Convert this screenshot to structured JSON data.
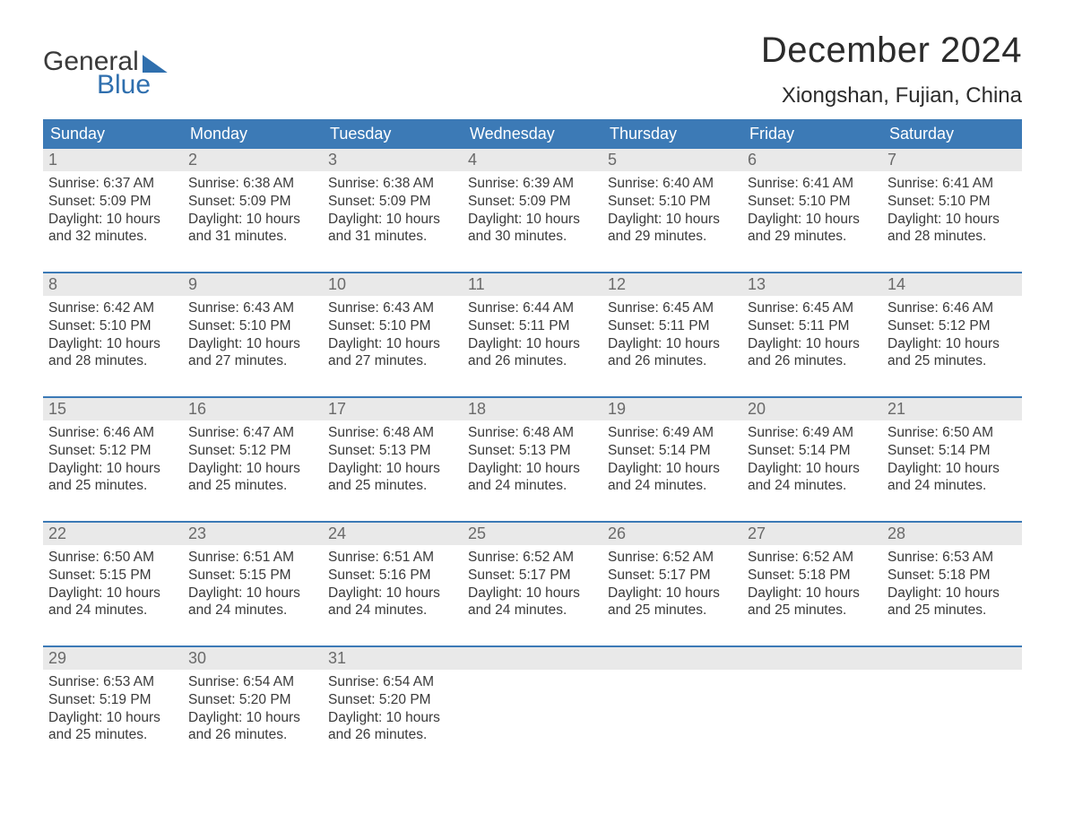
{
  "logo": {
    "top": "General",
    "bottom": "Blue"
  },
  "title": "December 2024",
  "location": "Xiongshan, Fujian, China",
  "colors": {
    "header_bg": "#3c7ab6",
    "header_text": "#ffffff",
    "daynum_bg": "#e9e9e9",
    "daynum_text": "#6a6a6a",
    "body_text": "#3a3a3a",
    "accent": "#2f6fae",
    "page_bg": "#ffffff"
  },
  "days_of_week": [
    "Sunday",
    "Monday",
    "Tuesday",
    "Wednesday",
    "Thursday",
    "Friday",
    "Saturday"
  ],
  "weeks": [
    [
      {
        "n": "1",
        "sr": "Sunrise: 6:37 AM",
        "ss": "Sunset: 5:09 PM",
        "d1": "Daylight: 10 hours",
        "d2": "and 32 minutes."
      },
      {
        "n": "2",
        "sr": "Sunrise: 6:38 AM",
        "ss": "Sunset: 5:09 PM",
        "d1": "Daylight: 10 hours",
        "d2": "and 31 minutes."
      },
      {
        "n": "3",
        "sr": "Sunrise: 6:38 AM",
        "ss": "Sunset: 5:09 PM",
        "d1": "Daylight: 10 hours",
        "d2": "and 31 minutes."
      },
      {
        "n": "4",
        "sr": "Sunrise: 6:39 AM",
        "ss": "Sunset: 5:09 PM",
        "d1": "Daylight: 10 hours",
        "d2": "and 30 minutes."
      },
      {
        "n": "5",
        "sr": "Sunrise: 6:40 AM",
        "ss": "Sunset: 5:10 PM",
        "d1": "Daylight: 10 hours",
        "d2": "and 29 minutes."
      },
      {
        "n": "6",
        "sr": "Sunrise: 6:41 AM",
        "ss": "Sunset: 5:10 PM",
        "d1": "Daylight: 10 hours",
        "d2": "and 29 minutes."
      },
      {
        "n": "7",
        "sr": "Sunrise: 6:41 AM",
        "ss": "Sunset: 5:10 PM",
        "d1": "Daylight: 10 hours",
        "d2": "and 28 minutes."
      }
    ],
    [
      {
        "n": "8",
        "sr": "Sunrise: 6:42 AM",
        "ss": "Sunset: 5:10 PM",
        "d1": "Daylight: 10 hours",
        "d2": "and 28 minutes."
      },
      {
        "n": "9",
        "sr": "Sunrise: 6:43 AM",
        "ss": "Sunset: 5:10 PM",
        "d1": "Daylight: 10 hours",
        "d2": "and 27 minutes."
      },
      {
        "n": "10",
        "sr": "Sunrise: 6:43 AM",
        "ss": "Sunset: 5:10 PM",
        "d1": "Daylight: 10 hours",
        "d2": "and 27 minutes."
      },
      {
        "n": "11",
        "sr": "Sunrise: 6:44 AM",
        "ss": "Sunset: 5:11 PM",
        "d1": "Daylight: 10 hours",
        "d2": "and 26 minutes."
      },
      {
        "n": "12",
        "sr": "Sunrise: 6:45 AM",
        "ss": "Sunset: 5:11 PM",
        "d1": "Daylight: 10 hours",
        "d2": "and 26 minutes."
      },
      {
        "n": "13",
        "sr": "Sunrise: 6:45 AM",
        "ss": "Sunset: 5:11 PM",
        "d1": "Daylight: 10 hours",
        "d2": "and 26 minutes."
      },
      {
        "n": "14",
        "sr": "Sunrise: 6:46 AM",
        "ss": "Sunset: 5:12 PM",
        "d1": "Daylight: 10 hours",
        "d2": "and 25 minutes."
      }
    ],
    [
      {
        "n": "15",
        "sr": "Sunrise: 6:46 AM",
        "ss": "Sunset: 5:12 PM",
        "d1": "Daylight: 10 hours",
        "d2": "and 25 minutes."
      },
      {
        "n": "16",
        "sr": "Sunrise: 6:47 AM",
        "ss": "Sunset: 5:12 PM",
        "d1": "Daylight: 10 hours",
        "d2": "and 25 minutes."
      },
      {
        "n": "17",
        "sr": "Sunrise: 6:48 AM",
        "ss": "Sunset: 5:13 PM",
        "d1": "Daylight: 10 hours",
        "d2": "and 25 minutes."
      },
      {
        "n": "18",
        "sr": "Sunrise: 6:48 AM",
        "ss": "Sunset: 5:13 PM",
        "d1": "Daylight: 10 hours",
        "d2": "and 24 minutes."
      },
      {
        "n": "19",
        "sr": "Sunrise: 6:49 AM",
        "ss": "Sunset: 5:14 PM",
        "d1": "Daylight: 10 hours",
        "d2": "and 24 minutes."
      },
      {
        "n": "20",
        "sr": "Sunrise: 6:49 AM",
        "ss": "Sunset: 5:14 PM",
        "d1": "Daylight: 10 hours",
        "d2": "and 24 minutes."
      },
      {
        "n": "21",
        "sr": "Sunrise: 6:50 AM",
        "ss": "Sunset: 5:14 PM",
        "d1": "Daylight: 10 hours",
        "d2": "and 24 minutes."
      }
    ],
    [
      {
        "n": "22",
        "sr": "Sunrise: 6:50 AM",
        "ss": "Sunset: 5:15 PM",
        "d1": "Daylight: 10 hours",
        "d2": "and 24 minutes."
      },
      {
        "n": "23",
        "sr": "Sunrise: 6:51 AM",
        "ss": "Sunset: 5:15 PM",
        "d1": "Daylight: 10 hours",
        "d2": "and 24 minutes."
      },
      {
        "n": "24",
        "sr": "Sunrise: 6:51 AM",
        "ss": "Sunset: 5:16 PM",
        "d1": "Daylight: 10 hours",
        "d2": "and 24 minutes."
      },
      {
        "n": "25",
        "sr": "Sunrise: 6:52 AM",
        "ss": "Sunset: 5:17 PM",
        "d1": "Daylight: 10 hours",
        "d2": "and 24 minutes."
      },
      {
        "n": "26",
        "sr": "Sunrise: 6:52 AM",
        "ss": "Sunset: 5:17 PM",
        "d1": "Daylight: 10 hours",
        "d2": "and 25 minutes."
      },
      {
        "n": "27",
        "sr": "Sunrise: 6:52 AM",
        "ss": "Sunset: 5:18 PM",
        "d1": "Daylight: 10 hours",
        "d2": "and 25 minutes."
      },
      {
        "n": "28",
        "sr": "Sunrise: 6:53 AM",
        "ss": "Sunset: 5:18 PM",
        "d1": "Daylight: 10 hours",
        "d2": "and 25 minutes."
      }
    ],
    [
      {
        "n": "29",
        "sr": "Sunrise: 6:53 AM",
        "ss": "Sunset: 5:19 PM",
        "d1": "Daylight: 10 hours",
        "d2": "and 25 minutes."
      },
      {
        "n": "30",
        "sr": "Sunrise: 6:54 AM",
        "ss": "Sunset: 5:20 PM",
        "d1": "Daylight: 10 hours",
        "d2": "and 26 minutes."
      },
      {
        "n": "31",
        "sr": "Sunrise: 6:54 AM",
        "ss": "Sunset: 5:20 PM",
        "d1": "Daylight: 10 hours",
        "d2": "and 26 minutes."
      },
      null,
      null,
      null,
      null
    ]
  ]
}
